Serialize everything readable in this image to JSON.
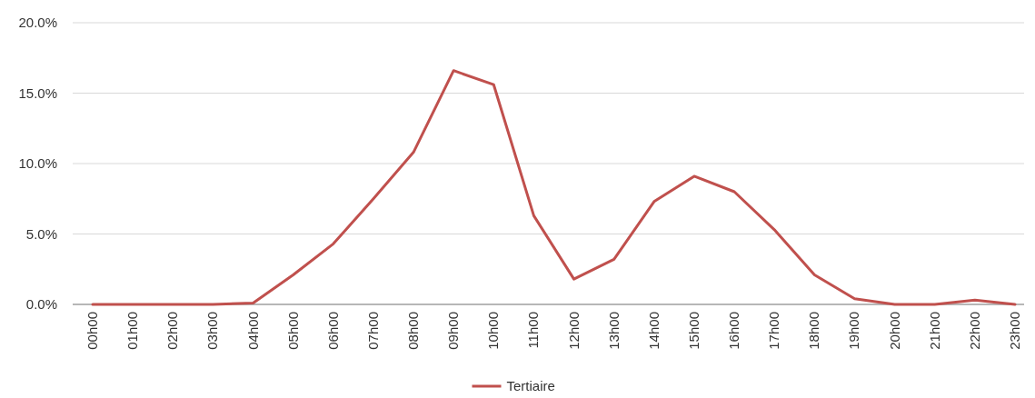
{
  "chart_data": {
    "type": "line",
    "categories": [
      "00h00",
      "01h00",
      "02h00",
      "03h00",
      "04h00",
      "05h00",
      "06h00",
      "07h00",
      "08h00",
      "09h00",
      "10h00",
      "11h00",
      "12h00",
      "13h00",
      "14h00",
      "15h00",
      "16h00",
      "17h00",
      "18h00",
      "19h00",
      "20h00",
      "21h00",
      "22h00",
      "23h00"
    ],
    "series": [
      {
        "name": "Tertiaire",
        "color": "#c0504d",
        "values": [
          0,
          0,
          0,
          0,
          0.1,
          2.1,
          4.3,
          7.5,
          10.8,
          16.6,
          15.6,
          6.3,
          1.8,
          3.2,
          7.3,
          9.1,
          8.0,
          5.3,
          2.1,
          0.4,
          0,
          0,
          0.3,
          0
        ]
      }
    ],
    "ylim": [
      0,
      20
    ],
    "yticks": [
      {
        "value": 0,
        "label": "0.0%"
      },
      {
        "value": 5,
        "label": "5.0%"
      },
      {
        "value": 10,
        "label": "10.0%"
      },
      {
        "value": 15,
        "label": "15.0%"
      },
      {
        "value": 20,
        "label": "20.0%"
      }
    ],
    "grid": "y",
    "legend": "bottom",
    "marker": "none",
    "line_style": "solid"
  }
}
